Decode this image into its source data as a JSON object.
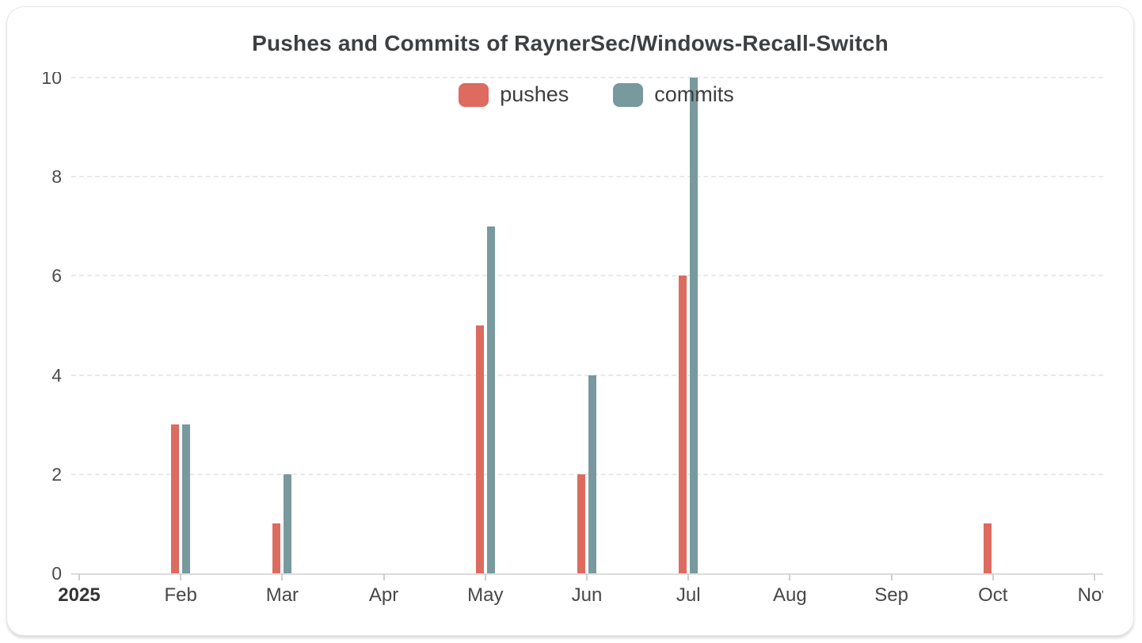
{
  "page": {
    "title": "Pushes and Commits of RaynerSec/Windows-Recall-Switch"
  },
  "colors": {
    "pushes": "#dd6b5f",
    "commits": "#78999e",
    "title_text": "#3d4043",
    "axis_label_text": "#4c4c4c",
    "gridline": "#e9e9e9",
    "axis_line": "#dcdcdc",
    "card_background": "#ffffff",
    "card_border": "#e6e6e6"
  },
  "chart_data": {
    "type": "bar",
    "title": "Pushes and Commits of RaynerSec/Windows-Recall-Switch",
    "categories": [
      "2025",
      "Feb",
      "Mar",
      "Apr",
      "May",
      "Jun",
      "Jul",
      "Aug",
      "Sep",
      "Oct",
      "Nov"
    ],
    "series": [
      {
        "name": "pushes",
        "color": "#dd6b5f",
        "values": [
          0,
          3,
          1,
          0,
          5,
          2,
          6,
          0,
          0,
          1,
          0
        ]
      },
      {
        "name": "commits",
        "color": "#78999e",
        "values": [
          0,
          3,
          2,
          0,
          7,
          4,
          10,
          0,
          0,
          0,
          0
        ]
      }
    ],
    "xlabel": "",
    "ylabel": "",
    "yticks": [
      0,
      2,
      4,
      6,
      8,
      10
    ],
    "ylim": [
      0,
      10
    ],
    "grid": true,
    "gridline_style": "dashed",
    "legend_position": "top-center",
    "first_x_label_is_year": true,
    "last_x_label_clipped": true,
    "top_y_label_clipped": true
  }
}
